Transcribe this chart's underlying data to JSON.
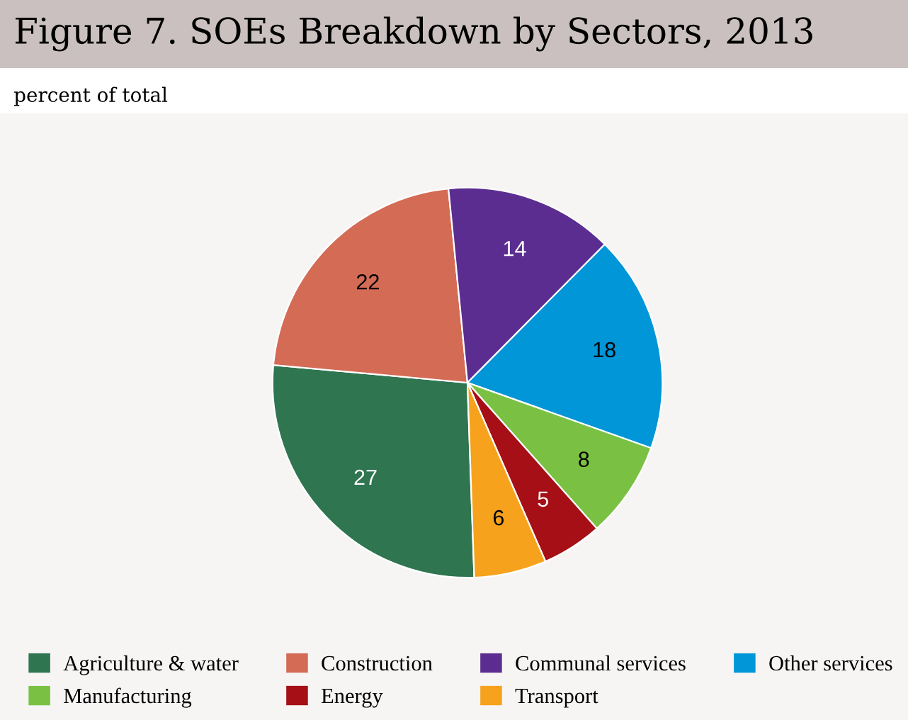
{
  "chart_data": {
    "type": "pie",
    "title": "Figure 7. SOEs Breakdown by Sectors, 2013",
    "subtitle": "percent of total",
    "categories": [
      "Agriculture & water",
      "Construction",
      "Communal services",
      "Other services",
      "Manufacturing",
      "Energy",
      "Transport"
    ],
    "values": [
      27,
      22,
      14,
      18,
      8,
      5,
      6
    ],
    "colors": [
      "#2e7550",
      "#d46b55",
      "#5c2d91",
      "#0096d8",
      "#7ac143",
      "#a50f15",
      "#f6a21c"
    ],
    "data_labels": true,
    "legend": "bottom"
  }
}
